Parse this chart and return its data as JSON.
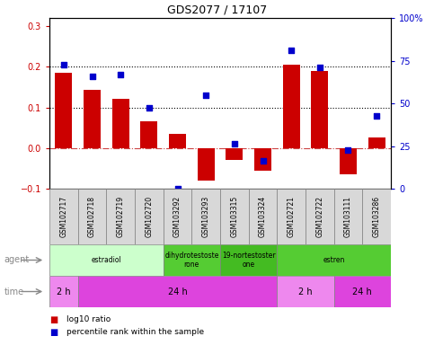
{
  "title": "GDS2077 / 17107",
  "samples": [
    "GSM102717",
    "GSM102718",
    "GSM102719",
    "GSM102720",
    "GSM103292",
    "GSM103293",
    "GSM103315",
    "GSM103324",
    "GSM102721",
    "GSM102722",
    "GSM103111",
    "GSM103286"
  ],
  "log10_ratio": [
    0.185,
    0.143,
    0.12,
    0.065,
    0.035,
    -0.08,
    -0.03,
    -0.055,
    0.205,
    0.19,
    -0.065,
    0.025
  ],
  "percentile_rank": [
    97,
    88,
    89,
    63,
    0,
    73,
    35,
    22,
    108,
    95,
    30,
    57
  ],
  "ylim_left": [
    -0.1,
    0.32
  ],
  "ylim_right": [
    0,
    133.3
  ],
  "yticks_left": [
    -0.1,
    0.0,
    0.1,
    0.2,
    0.3
  ],
  "yticks_right": [
    0,
    33.25,
    66.5,
    99.75,
    133.0
  ],
  "ytick_labels_right": [
    "0",
    "25",
    "50",
    "75",
    "100%"
  ],
  "bar_color": "#cc0000",
  "dot_color": "#0000cc",
  "agent_row": [
    {
      "label": "estradiol",
      "start": 0,
      "end": 4,
      "color": "#ccffcc"
    },
    {
      "label": "dihydrotestoste\nrone",
      "start": 4,
      "end": 6,
      "color": "#55cc33"
    },
    {
      "label": "19-nortestoster\none",
      "start": 6,
      "end": 8,
      "color": "#44bb22"
    },
    {
      "label": "estren",
      "start": 8,
      "end": 12,
      "color": "#55cc33"
    }
  ],
  "time_row": [
    {
      "label": "2 h",
      "start": 0,
      "end": 1,
      "color": "#ee88ee"
    },
    {
      "label": "24 h",
      "start": 1,
      "end": 8,
      "color": "#dd44dd"
    },
    {
      "label": "2 h",
      "start": 8,
      "end": 10,
      "color": "#ee88ee"
    },
    {
      "label": "24 h",
      "start": 10,
      "end": 12,
      "color": "#dd44dd"
    }
  ],
  "hline_y": [
    0.1,
    0.2
  ],
  "zero_line_color": "#cc4444",
  "tick_label_color_left": "#cc0000",
  "tick_label_color_right": "#0000cc",
  "plot_bg": "#ffffff",
  "xticklabel_bg": "#d8d8d8"
}
